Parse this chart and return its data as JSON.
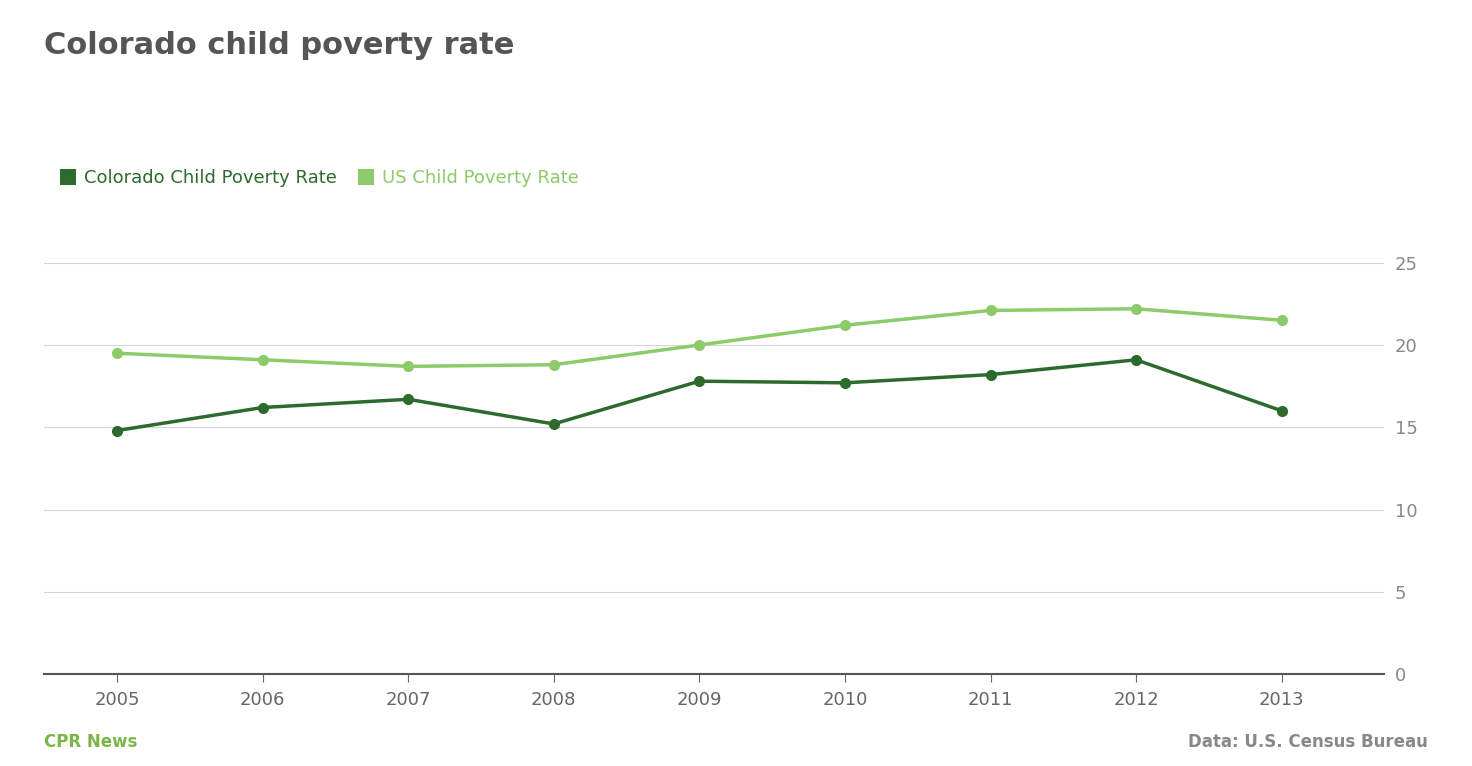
{
  "title": "Colorado child poverty rate",
  "years": [
    2005,
    2006,
    2007,
    2008,
    2009,
    2010,
    2011,
    2012,
    2013
  ],
  "colorado_rate": [
    14.8,
    16.2,
    16.7,
    15.2,
    17.8,
    17.7,
    18.2,
    19.1,
    16.0
  ],
  "us_rate": [
    19.5,
    19.1,
    18.7,
    18.8,
    20.0,
    21.2,
    22.1,
    22.2,
    21.5
  ],
  "colorado_color": "#2d6a2d",
  "us_color": "#8dca6a",
  "legend_co_label": "Colorado Child Poverty Rate",
  "legend_us_label": "US Child Poverty Rate",
  "ylim": [
    0,
    27
  ],
  "yticks": [
    0,
    5,
    10,
    15,
    20,
    25
  ],
  "source_left": "CPR News",
  "source_right": "Data: U.S. Census Bureau",
  "background_color": "#ffffff",
  "grid_color": "#d5d5d5",
  "title_fontsize": 22,
  "legend_fontsize": 13,
  "axis_tick_fontsize": 13,
  "source_fontsize": 12,
  "line_width": 2.5,
  "marker_size": 7,
  "title_color": "#555555",
  "tick_color": "#888888",
  "xlabel_color": "#666666"
}
